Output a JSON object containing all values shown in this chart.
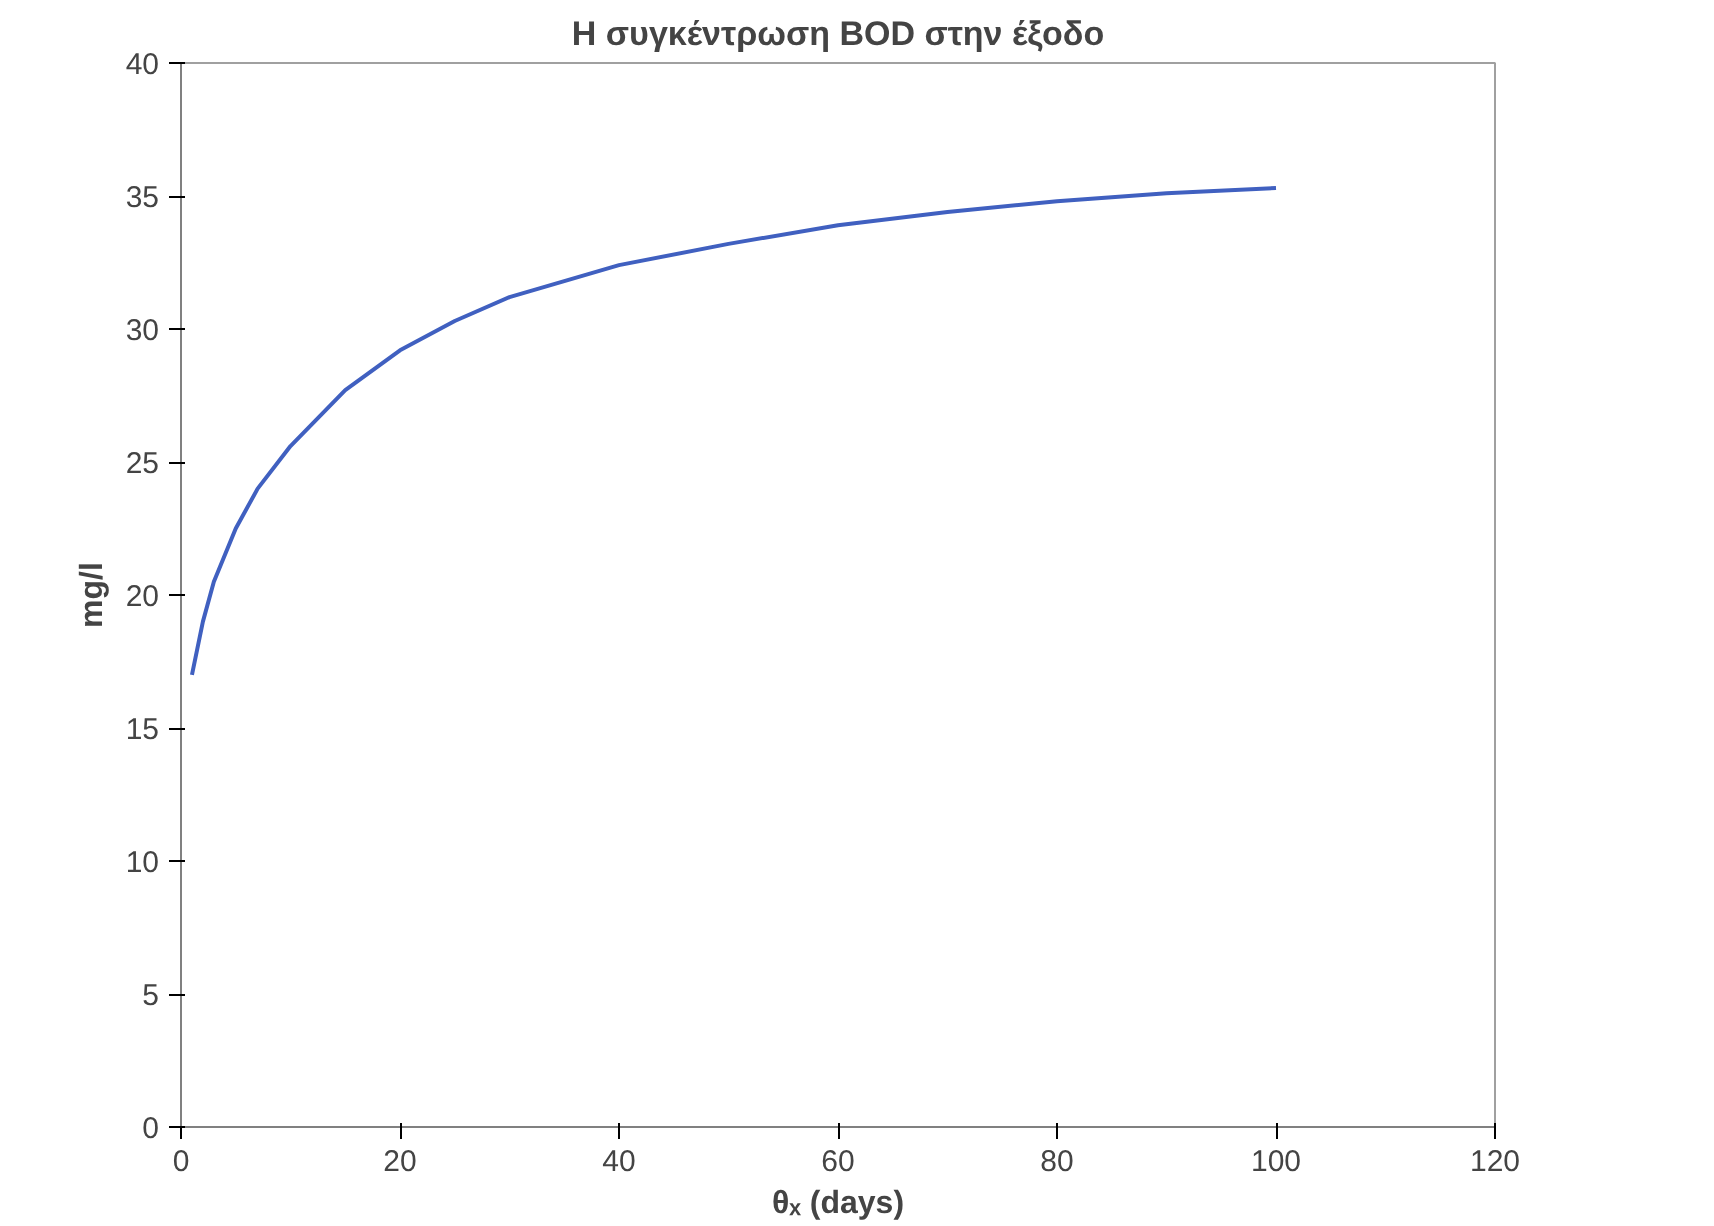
{
  "chart_data": {
    "type": "line",
    "title": "Η συγκέντρωση BOD στην έξοδο",
    "xlabel": "θₓ (days)",
    "ylabel": "mg/l",
    "x": [
      1,
      2,
      3,
      5,
      7,
      10,
      15,
      20,
      25,
      30,
      40,
      50,
      60,
      70,
      80,
      90,
      100
    ],
    "series": [
      {
        "color": "#4060c0",
        "values": [
          17,
          19,
          20.5,
          22.5,
          24,
          25.6,
          27.7,
          29.2,
          30.3,
          31.2,
          32.4,
          33.2,
          33.9,
          34.4,
          34.8,
          35.1,
          35.3
        ]
      }
    ],
    "xlim": [
      0,
      120
    ],
    "xticks": [
      0,
      20,
      40,
      60,
      80,
      100,
      120
    ],
    "ylim": [
      0,
      40
    ],
    "yticks": [
      0,
      5,
      10,
      15,
      20,
      25,
      30,
      35,
      40
    ],
    "grid": false,
    "marker": "none",
    "line_style": "solid"
  }
}
